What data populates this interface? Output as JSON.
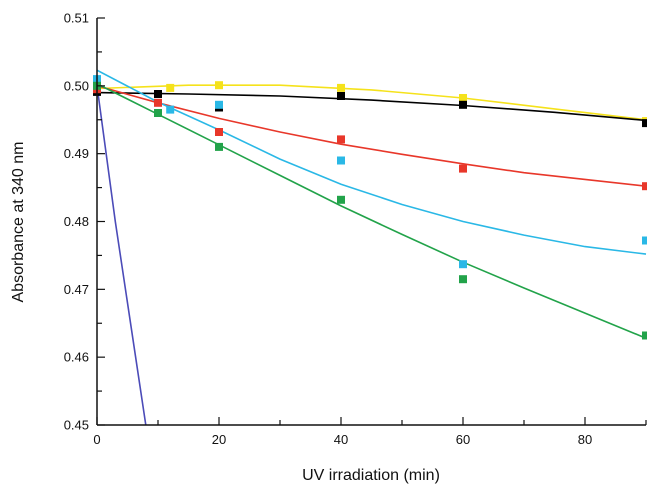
{
  "chart_data": {
    "type": "scatter",
    "xlabel": "UV irradiation (min)",
    "ylabel": "Absorbance at 340 nm",
    "xlim": [
      0,
      90
    ],
    "ylim": [
      0.45,
      0.51
    ],
    "x_ticks": [
      0,
      20,
      40,
      60,
      80
    ],
    "y_ticks": [
      0.45,
      0.46,
      0.47,
      0.48,
      0.49,
      0.5,
      0.51
    ],
    "x_tick_labels": [
      "0",
      "20",
      "40",
      "60",
      "80"
    ],
    "y_tick_labels": [
      "0.45",
      "0.46",
      "0.47",
      "0.48",
      "0.49",
      "0.50",
      "0.51"
    ],
    "grid": false,
    "series": [
      {
        "color": "#f5e21b",
        "x": [
          0,
          12,
          20,
          40,
          60,
          90
        ],
        "y": [
          0.4995,
          0.4997,
          0.5001,
          0.4997,
          0.4982,
          0.4948
        ],
        "fit": {
          "x": [
            0,
            15,
            30,
            45,
            60,
            75,
            90
          ],
          "y": [
            0.4996,
            0.5001,
            0.5001,
            0.4994,
            0.4982,
            0.4966,
            0.495
          ]
        }
      },
      {
        "color": "#000000",
        "x": [
          0,
          10,
          20,
          40,
          60,
          90
        ],
        "y": [
          0.4991,
          0.4988,
          0.4968,
          0.4985,
          0.4972,
          0.4945
        ],
        "fit": {
          "x": [
            0,
            15,
            30,
            45,
            60,
            75,
            90
          ],
          "y": [
            0.499,
            0.4988,
            0.4985,
            0.4979,
            0.4971,
            0.4961,
            0.4949
          ]
        }
      },
      {
        "color": "#e8372a",
        "x": [
          0,
          10,
          20,
          40,
          60,
          90
        ],
        "y": [
          0.4995,
          0.4975,
          0.4932,
          0.4921,
          0.4878,
          0.4852
        ],
        "fit": {
          "x": [
            0,
            10,
            20,
            30,
            40,
            50,
            60,
            70,
            80,
            90
          ],
          "y": [
            0.5,
            0.4975,
            0.4952,
            0.4932,
            0.4914,
            0.4899,
            0.4885,
            0.4872,
            0.4862,
            0.4852
          ]
        }
      },
      {
        "color": "#2ab8e6",
        "x": [
          0,
          12,
          20,
          40,
          60,
          90
        ],
        "y": [
          0.501,
          0.4965,
          0.4972,
          0.489,
          0.4737,
          0.4772
        ],
        "fit": {
          "x": [
            0,
            10,
            20,
            30,
            40,
            50,
            60,
            70,
            80,
            90
          ],
          "y": [
            0.5023,
            0.4976,
            0.4935,
            0.4892,
            0.4855,
            0.4825,
            0.48,
            0.478,
            0.4763,
            0.4752
          ]
        }
      },
      {
        "color": "#22a34a",
        "x": [
          0,
          10,
          20,
          40,
          60,
          90
        ],
        "y": [
          0.5,
          0.496,
          0.491,
          0.4832,
          0.4715,
          0.4632
        ],
        "fit": {
          "x": [
            0,
            10,
            20,
            30,
            40,
            50,
            60,
            70,
            80,
            90
          ],
          "y": [
            0.5003,
            0.4958,
            0.4913,
            0.4868,
            0.4823,
            0.4781,
            0.474,
            0.4702,
            0.4665,
            0.4628
          ]
        }
      },
      {
        "color": "#4b4bb8",
        "x": [],
        "y": [],
        "fit": {
          "x": [
            0,
            3,
            8
          ],
          "y": [
            0.5,
            0.48,
            0.45
          ]
        }
      }
    ]
  }
}
